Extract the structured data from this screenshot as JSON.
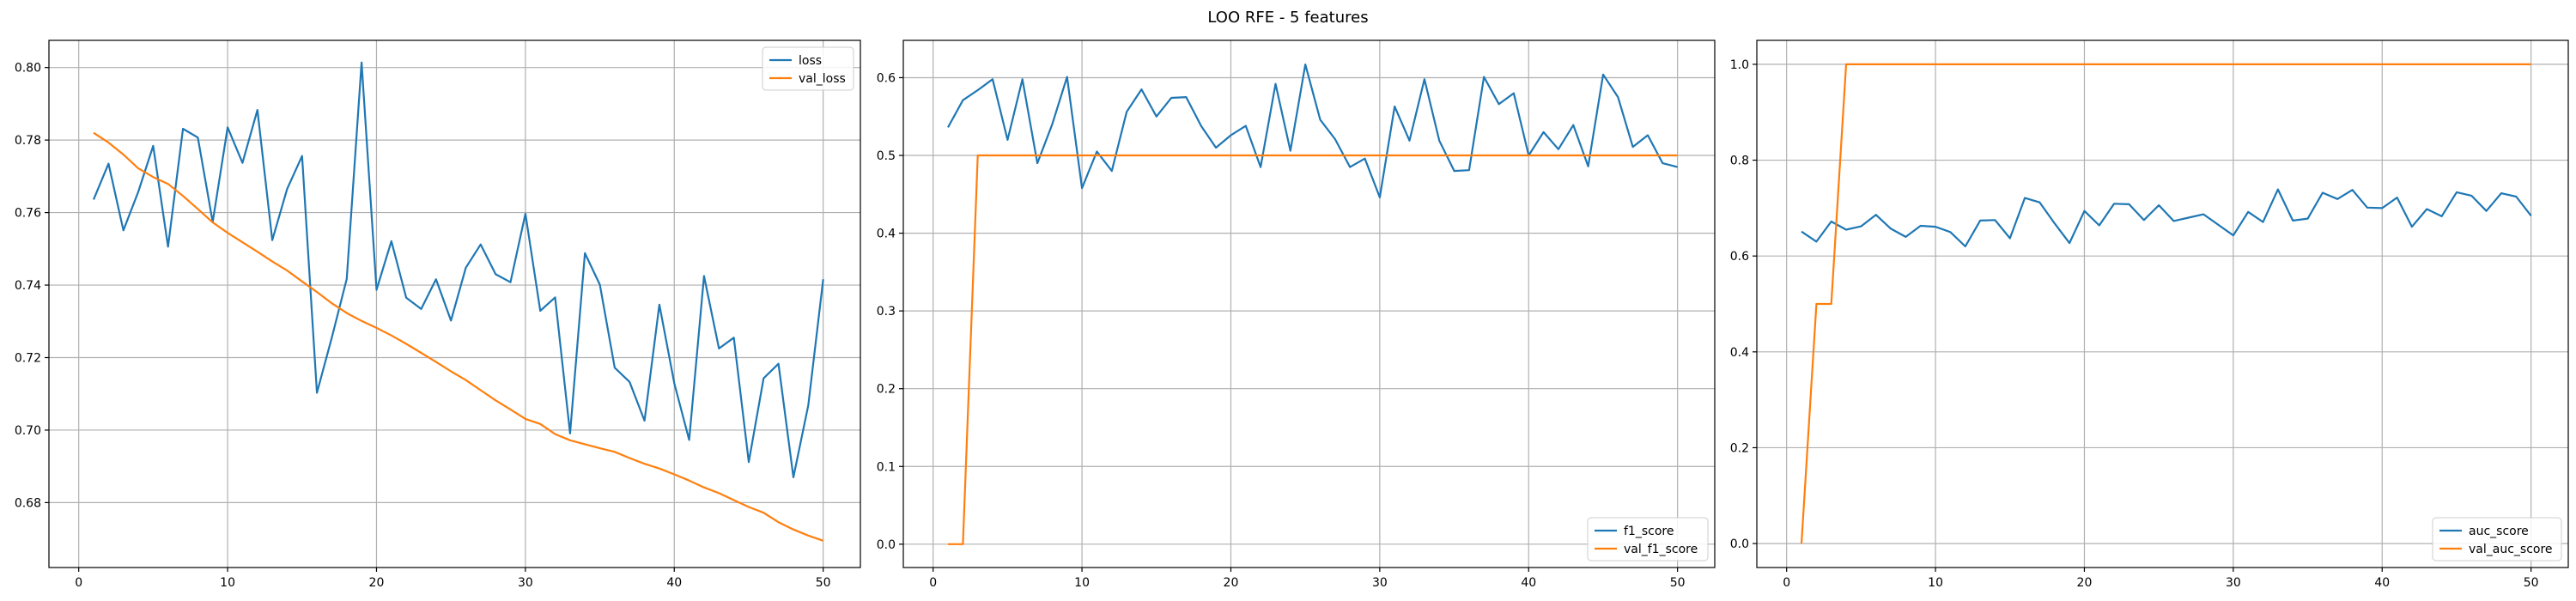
{
  "figure": {
    "title": "LOO RFE - 5 features"
  },
  "colors": {
    "series1": "#1f77b4",
    "series2": "#ff7f0e",
    "grid": "#b0b0b0",
    "axes": "#000000"
  },
  "chart_data": [
    {
      "type": "line",
      "xlim": [
        -2,
        52.5
      ],
      "ylim": [
        0.6621,
        0.8075
      ],
      "xticks": [
        0,
        10,
        20,
        30,
        40,
        50
      ],
      "yticks": [
        0.68,
        0.7,
        0.72,
        0.74,
        0.76,
        0.78,
        0.8
      ],
      "ytick_labels": [
        "0.68",
        "0.70",
        "0.72",
        "0.74",
        "0.76",
        "0.78",
        "0.80"
      ],
      "grid": true,
      "legend": "top-right",
      "x": [
        1,
        2,
        3,
        4,
        5,
        6,
        7,
        8,
        9,
        10,
        11,
        12,
        13,
        14,
        15,
        16,
        17,
        18,
        19,
        20,
        21,
        22,
        23,
        24,
        25,
        26,
        27,
        28,
        29,
        30,
        31,
        32,
        33,
        34,
        35,
        36,
        37,
        38,
        39,
        40,
        41,
        42,
        43,
        44,
        45,
        46,
        47,
        48,
        49,
        50
      ],
      "series": [
        {
          "name": "loss",
          "color": "#1f77b4",
          "values": [
            0.7636,
            0.7735,
            0.7551,
            0.7657,
            0.7784,
            0.7506,
            0.7831,
            0.7807,
            0.7574,
            0.7835,
            0.7737,
            0.7883,
            0.7524,
            0.7665,
            0.7756,
            0.7103,
            0.7255,
            0.7417,
            0.8014,
            0.7387,
            0.7521,
            0.7365,
            0.7334,
            0.7416,
            0.7302,
            0.7448,
            0.7512,
            0.743,
            0.7408,
            0.7597,
            0.7329,
            0.7366,
            0.6991,
            0.7488,
            0.7401,
            0.7172,
            0.7133,
            0.7026,
            0.7346,
            0.7129,
            0.6973,
            0.7425,
            0.7225,
            0.7255,
            0.6912,
            0.7143,
            0.7183,
            0.687,
            0.7068,
            0.7416
          ]
        },
        {
          "name": "val_loss",
          "color": "#ff7f0e",
          "values": [
            0.782,
            0.7793,
            0.776,
            0.7722,
            0.7698,
            0.7679,
            0.7646,
            0.761,
            0.7573,
            0.7544,
            0.7518,
            0.7492,
            0.7465,
            0.744,
            0.741,
            0.7381,
            0.735,
            0.7323,
            0.7301,
            0.7282,
            0.7261,
            0.7238,
            0.7213,
            0.7188,
            0.7162,
            0.7138,
            0.711,
            0.7082,
            0.7057,
            0.7031,
            0.7017,
            0.6989,
            0.6972,
            0.6961,
            0.695,
            0.694,
            0.6923,
            0.6907,
            0.6894,
            0.6878,
            0.6861,
            0.6842,
            0.6826,
            0.6807,
            0.6788,
            0.6772,
            0.6746,
            0.6726,
            0.6709,
            0.6695
          ]
        }
      ]
    },
    {
      "type": "line",
      "xlim": [
        -2,
        52.5
      ],
      "ylim": [
        -0.03,
        0.648
      ],
      "xticks": [
        0,
        10,
        20,
        30,
        40,
        50
      ],
      "yticks": [
        0.0,
        0.1,
        0.2,
        0.3,
        0.4,
        0.5,
        0.6
      ],
      "ytick_labels": [
        "0.0",
        "0.1",
        "0.2",
        "0.3",
        "0.4",
        "0.5",
        "0.6"
      ],
      "grid": true,
      "legend": "bottom-right",
      "x": [
        1,
        2,
        3,
        4,
        5,
        6,
        7,
        8,
        9,
        10,
        11,
        12,
        13,
        14,
        15,
        16,
        17,
        18,
        19,
        20,
        21,
        22,
        23,
        24,
        25,
        26,
        27,
        28,
        29,
        30,
        31,
        32,
        33,
        34,
        35,
        36,
        37,
        38,
        39,
        40,
        41,
        42,
        43,
        44,
        45,
        46,
        47,
        48,
        49,
        50
      ],
      "series": [
        {
          "name": "f1_score",
          "color": "#1f77b4",
          "values": [
            0.536,
            0.571,
            0.584,
            0.598,
            0.52,
            0.598,
            0.49,
            0.54,
            0.601,
            0.458,
            0.505,
            0.48,
            0.556,
            0.585,
            0.55,
            0.574,
            0.575,
            0.538,
            0.51,
            0.526,
            0.538,
            0.485,
            0.592,
            0.506,
            0.617,
            0.546,
            0.521,
            0.485,
            0.496,
            0.446,
            0.563,
            0.519,
            0.598,
            0.519,
            0.48,
            0.481,
            0.601,
            0.566,
            0.58,
            0.5,
            0.53,
            0.508,
            0.539,
            0.486,
            0.604,
            0.575,
            0.511,
            0.526,
            0.49,
            0.485
          ]
        },
        {
          "name": "val_f1_score",
          "color": "#ff7f0e",
          "values": [
            0,
            0,
            0.5,
            0.5,
            0.5,
            0.5,
            0.5,
            0.5,
            0.5,
            0.5,
            0.5,
            0.5,
            0.5,
            0.5,
            0.5,
            0.5,
            0.5,
            0.5,
            0.5,
            0.5,
            0.5,
            0.5,
            0.5,
            0.5,
            0.5,
            0.5,
            0.5,
            0.5,
            0.5,
            0.5,
            0.5,
            0.5,
            0.5,
            0.5,
            0.5,
            0.5,
            0.5,
            0.5,
            0.5,
            0.5,
            0.5,
            0.5,
            0.5,
            0.5,
            0.5,
            0.5,
            0.5,
            0.5,
            0.5,
            0.5
          ]
        }
      ]
    },
    {
      "type": "line",
      "xlim": [
        -2,
        52.5
      ],
      "ylim": [
        -0.05,
        1.05
      ],
      "xticks": [
        0,
        10,
        20,
        30,
        40,
        50
      ],
      "yticks": [
        0.0,
        0.2,
        0.4,
        0.6,
        0.8,
        1.0
      ],
      "ytick_labels": [
        "0.0",
        "0.2",
        "0.4",
        "0.6",
        "0.8",
        "1.0"
      ],
      "grid": true,
      "legend": "bottom-right",
      "x": [
        1,
        2,
        3,
        4,
        5,
        6,
        7,
        8,
        9,
        10,
        11,
        12,
        13,
        14,
        15,
        16,
        17,
        18,
        19,
        20,
        21,
        22,
        23,
        24,
        25,
        26,
        27,
        28,
        29,
        30,
        31,
        32,
        33,
        34,
        35,
        36,
        37,
        38,
        39,
        40,
        41,
        42,
        43,
        44,
        45,
        46,
        47,
        48,
        49,
        50
      ],
      "series": [
        {
          "name": "auc_score",
          "color": "#1f77b4",
          "values": [
            0.651,
            0.63,
            0.672,
            0.655,
            0.662,
            0.686,
            0.657,
            0.64,
            0.663,
            0.661,
            0.65,
            0.62,
            0.674,
            0.675,
            0.637,
            0.721,
            0.712,
            0.668,
            0.627,
            0.694,
            0.664,
            0.709,
            0.708,
            0.675,
            0.706,
            0.673,
            0.68,
            0.687,
            0.665,
            0.643,
            0.692,
            0.671,
            0.739,
            0.674,
            0.678,
            0.732,
            0.719,
            0.738,
            0.701,
            0.7,
            0.722,
            0.661,
            0.698,
            0.683,
            0.733,
            0.726,
            0.694,
            0.731,
            0.724,
            0.684
          ]
        },
        {
          "name": "val_auc_score",
          "color": "#ff7f0e",
          "values": [
            0,
            0.5,
            0.5,
            1.0,
            1.0,
            1.0,
            1.0,
            1.0,
            1.0,
            1.0,
            1.0,
            1.0,
            1.0,
            1.0,
            1.0,
            1.0,
            1.0,
            1.0,
            1.0,
            1.0,
            1.0,
            1.0,
            1.0,
            1.0,
            1.0,
            1.0,
            1.0,
            1.0,
            1.0,
            1.0,
            1.0,
            1.0,
            1.0,
            1.0,
            1.0,
            1.0,
            1.0,
            1.0,
            1.0,
            1.0,
            1.0,
            1.0,
            1.0,
            1.0,
            1.0,
            1.0,
            1.0,
            1.0,
            1.0,
            1.0
          ]
        }
      ]
    }
  ]
}
